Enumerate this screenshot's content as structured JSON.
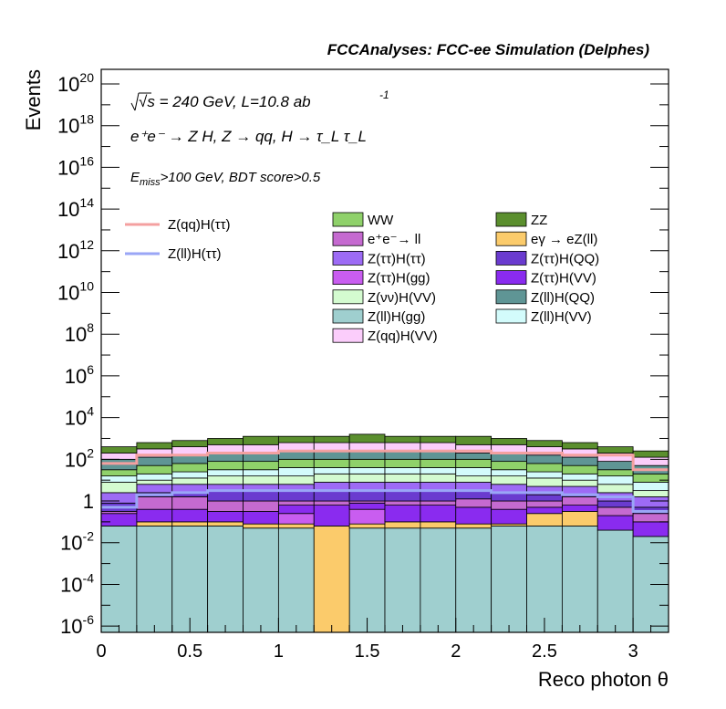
{
  "title": "FCCAnalyses: FCC-ee Simulation (Delphes)",
  "annotations": {
    "line1_sqrt": "√s",
    "line1_rest": " = 240 GeV, L=10.8 ab",
    "line1_exp": "-1",
    "line2": "e⁺e⁻ → Z H, Z → qq, H → τ_L τ_L",
    "line3_E": "E",
    "line3_sub": "miss",
    "line3_rest": ">100 GeV, BDT score>0.5"
  },
  "chart_data": {
    "type": "bar",
    "subtype": "stacked-histogram",
    "xlabel": "Reco photon θ",
    "ylabel": "Events",
    "xlim": [
      0,
      3.2
    ],
    "ylim_log10": [
      -6.3,
      20.7
    ],
    "yscale": "log",
    "grid": false,
    "legend_placement": "top-center",
    "x_ticks": [
      "0",
      "0.5",
      "1",
      "1.5",
      "2",
      "2.5",
      "3"
    ],
    "x_tick_values": [
      0,
      0.5,
      1,
      1.5,
      2,
      2.5,
      3
    ],
    "y_ticks": [
      {
        "base": "10",
        "exp": "20",
        "v": 20
      },
      {
        "base": "10",
        "exp": "18",
        "v": 18
      },
      {
        "base": "10",
        "exp": "16",
        "v": 16
      },
      {
        "base": "10",
        "exp": "14",
        "v": 14
      },
      {
        "base": "10",
        "exp": "12",
        "v": 12
      },
      {
        "base": "10",
        "exp": "10",
        "v": 10
      },
      {
        "base": "10",
        "exp": "8",
        "v": 8
      },
      {
        "base": "10",
        "exp": "6",
        "v": 6
      },
      {
        "base": "10",
        "exp": "4",
        "v": 4
      },
      {
        "base": "10",
        "exp": "2",
        "v": 2
      },
      {
        "base": "1",
        "exp": "",
        "v": 0
      },
      {
        "base": "10",
        "exp": "-2",
        "v": -2
      },
      {
        "base": "10",
        "exp": "-4",
        "v": -4
      },
      {
        "base": "10",
        "exp": "-6",
        "v": -6
      }
    ],
    "bin_edges": [
      0,
      0.2,
      0.4,
      0.6,
      0.8,
      1.0,
      1.2,
      1.4,
      1.6,
      1.8,
      2.0,
      2.2,
      2.4,
      2.6,
      2.8,
      3.0,
      3.2
    ],
    "stack_order": [
      "Z(ll)H(gg)",
      "eγ → eZ(ll)",
      "Z(ττ)H(gg)",
      "Z(ττ)H(VV)",
      "e⁺e⁻→ ll",
      "Z(ττ)H(QQ)",
      "Z(ττ)H(ττ)",
      "Z(νν)H(VV)",
      "Z(ll)H(VV)",
      "WW",
      "Z(ll)H(QQ)",
      "Z(qq)H(VV)",
      "ZZ"
    ],
    "stack_totals_log10": [
      [
        -6.3,
        -6.3,
        -6.3,
        -6.3,
        -6.3,
        -6.3,
        -6.3,
        -6.3,
        -6.3,
        -6.3,
        -6.3,
        -6.3,
        -6.3,
        -6.3,
        -6.3,
        -6.3
      ],
      [
        -1.2,
        -1.2,
        -1.2,
        -1.2,
        -1.3,
        -1.3,
        -6.3,
        -1.3,
        -1.3,
        -1.3,
        -1.3,
        -1.2,
        -1.2,
        -1.2,
        -1.4,
        -1.7
      ],
      [
        -1.2,
        -1.0,
        -1.0,
        -1.0,
        -1.1,
        -1.1,
        -1.2,
        -1.1,
        -1.0,
        -1.0,
        -1.1,
        -1.1,
        -0.6,
        -0.5,
        -1.4,
        -1.7
      ],
      [
        -1.2,
        -1.0,
        -1.0,
        -1.0,
        -1.1,
        -0.6,
        -1.2,
        -0.4,
        -1.0,
        -1.0,
        -1.1,
        -1.1,
        -0.6,
        -0.5,
        -1.4,
        -1.7
      ],
      [
        -0.6,
        -0.4,
        -0.4,
        -0.5,
        -0.5,
        -0.2,
        -0.2,
        -0.1,
        -0.2,
        -0.2,
        -0.3,
        -0.4,
        -0.3,
        -0.2,
        -0.7,
        -1.0
      ],
      [
        -0.5,
        0.2,
        0.2,
        0.0,
        0.0,
        0.0,
        0.0,
        0.0,
        0.0,
        0.0,
        0.1,
        0.0,
        0.0,
        0.2,
        -0.3,
        -0.6
      ],
      [
        -0.1,
        0.4,
        0.4,
        0.5,
        0.5,
        0.5,
        0.5,
        0.5,
        0.5,
        0.5,
        0.5,
        0.4,
        0.3,
        0.3,
        0.0,
        -0.3
      ],
      [
        0.4,
        0.8,
        0.8,
        0.8,
        0.8,
        0.8,
        0.9,
        0.9,
        0.9,
        0.9,
        0.9,
        0.8,
        0.7,
        0.7,
        0.4,
        0.2
      ],
      [
        0.9,
        1.0,
        1.1,
        1.2,
        1.2,
        1.2,
        1.3,
        1.3,
        1.3,
        1.3,
        1.2,
        1.2,
        1.1,
        1.0,
        0.8,
        0.5
      ],
      [
        1.2,
        1.3,
        1.4,
        1.5,
        1.5,
        1.6,
        1.6,
        1.6,
        1.6,
        1.6,
        1.6,
        1.5,
        1.4,
        1.3,
        1.2,
        0.9
      ],
      [
        1.5,
        1.7,
        1.8,
        1.9,
        1.9,
        2.0,
        2.0,
        2.0,
        2.0,
        2.0,
        2.0,
        1.9,
        1.8,
        1.7,
        1.5,
        1.3
      ],
      [
        2.0,
        2.1,
        2.2,
        2.3,
        2.3,
        2.4,
        2.4,
        2.4,
        2.4,
        2.4,
        2.3,
        2.3,
        2.2,
        2.1,
        1.9,
        1.7
      ],
      [
        2.3,
        2.5,
        2.6,
        2.7,
        2.7,
        2.8,
        2.8,
        2.8,
        2.8,
        2.8,
        2.7,
        2.7,
        2.6,
        2.5,
        2.3,
        2.1
      ],
      [
        2.6,
        2.8,
        2.9,
        3.0,
        3.1,
        3.1,
        3.1,
        3.2,
        3.1,
        3.1,
        3.1,
        3.0,
        2.9,
        2.8,
        2.6,
        2.4
      ]
    ],
    "line_series": [
      {
        "name": "Z(qq)H(ττ)",
        "color": "#f4a0a0",
        "values_log10": [
          1.8,
          2.2,
          2.2,
          2.3,
          2.3,
          2.4,
          2.4,
          2.4,
          2.4,
          2.4,
          2.4,
          2.3,
          2.3,
          2.2,
          2.2,
          1.5
        ]
      },
      {
        "name": "Z(ll)H(ττ)",
        "color": "#9aa6f6",
        "values_log10": [
          -0.3,
          0.3,
          0.4,
          0.5,
          0.5,
          0.5,
          0.5,
          0.5,
          0.5,
          0.5,
          0.5,
          0.4,
          0.4,
          0.3,
          0.2,
          -0.5
        ]
      }
    ],
    "legend_lines": [
      {
        "name": "Z(qq)H(ττ)",
        "color": "#f4a0a0"
      },
      {
        "name": "Z(ll)H(ττ)",
        "color": "#9aa6f6"
      }
    ],
    "legend_boxes": [
      {
        "name": "WW",
        "color": "#8fd16a"
      },
      {
        "name": "ZZ",
        "color": "#5b8f2e"
      },
      {
        "name": "e⁺e⁻→ ll",
        "color": "#c56ad0"
      },
      {
        "name": "eγ → eZ(ll)",
        "color": "#fbcb6b"
      },
      {
        "name": "Z(ττ)H(ττ)",
        "color": "#9d6bf5"
      },
      {
        "name": "Z(ττ)H(QQ)",
        "color": "#6a3bcf"
      },
      {
        "name": "Z(ττ)H(gg)",
        "color": "#c95df0"
      },
      {
        "name": "Z(ττ)H(VV)",
        "color": "#8a2bef"
      },
      {
        "name": "Z(νν)H(VV)",
        "color": "#d4fbd0"
      },
      {
        "name": "Z(ll)H(QQ)",
        "color": "#5f9595"
      },
      {
        "name": "Z(ll)H(gg)",
        "color": "#9fcfcf"
      },
      {
        "name": "Z(ll)H(VV)",
        "color": "#d3fbfb"
      },
      {
        "name": "Z(qq)H(VV)",
        "color": "#fbcdfb"
      }
    ]
  }
}
